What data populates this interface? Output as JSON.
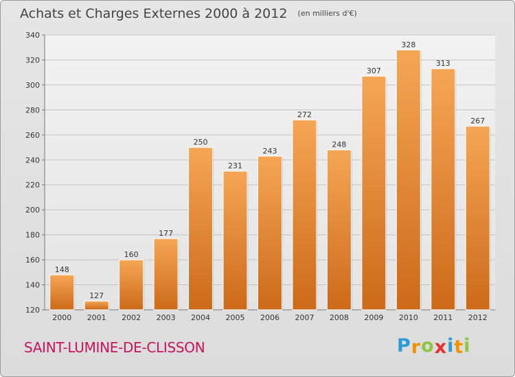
{
  "chart_data": {
    "type": "bar",
    "title": "Achats et Charges Externes 2000 à 2012",
    "subtitle": "(en milliers d'€)",
    "categories": [
      "2000",
      "2001",
      "2002",
      "2003",
      "2004",
      "2005",
      "2006",
      "2007",
      "2008",
      "2009",
      "2010",
      "2011",
      "2012"
    ],
    "values": [
      148,
      127,
      160,
      177,
      250,
      231,
      243,
      272,
      248,
      307,
      328,
      313,
      267
    ],
    "ylim": [
      120,
      340
    ],
    "yticks": [
      120,
      140,
      160,
      180,
      200,
      220,
      240,
      260,
      280,
      300,
      320,
      340
    ],
    "grid": true,
    "bar_color_top": "#f5a655",
    "bar_color_bottom": "#cc6a19"
  },
  "footer": {
    "commune": "SAINT-LUMINE-DE-CLISSON",
    "logo_letters": [
      {
        "char": "P",
        "color": "#2a9bd6"
      },
      {
        "char": "r",
        "color": "#f39200"
      },
      {
        "char": "o",
        "color": "#8dc63f"
      },
      {
        "char": "x",
        "color": "#e4312b"
      },
      {
        "char": "i",
        "color": "#2a9bd6"
      },
      {
        "char": "t",
        "color": "#f39200"
      },
      {
        "char": "i",
        "color": "#8dc63f"
      }
    ]
  }
}
